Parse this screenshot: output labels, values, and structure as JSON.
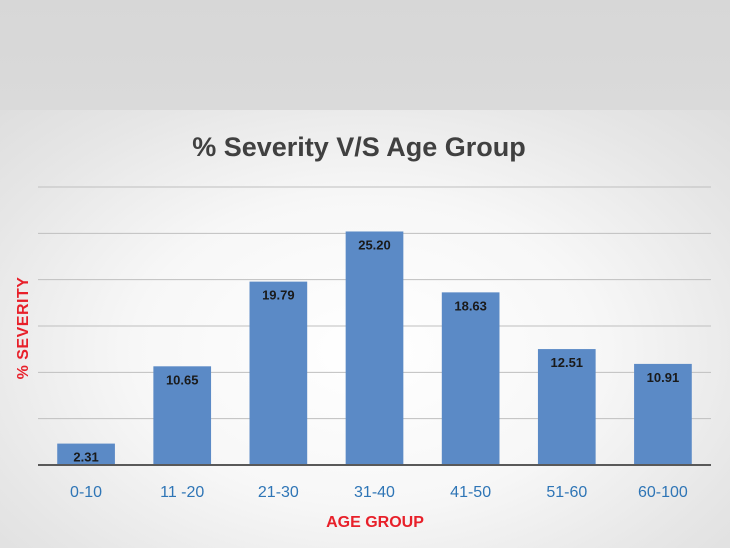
{
  "chart_data": {
    "type": "bar",
    "title": "% Severity V/S Age Group",
    "xlabel": "AGE GROUP",
    "ylabel": "% SEVERITY",
    "categories": [
      "0-10",
      "11 -20",
      "21-30",
      "31-40",
      "41-50",
      "51-60",
      "60-100"
    ],
    "values": [
      2.31,
      10.65,
      19.79,
      25.2,
      18.63,
      12.51,
      10.91
    ],
    "data_labels": [
      "2.31",
      "10.65",
      "19.79",
      "25.20",
      "18.63",
      "12.51",
      "10.91"
    ],
    "ylim": [
      0,
      30
    ],
    "grid": true,
    "legend": "none",
    "colors": {
      "bar": "#5b8ac6",
      "title": "#404040",
      "axis_label": "#e8202a",
      "category_label": "#2e75b6",
      "data_label": "#1a1a1a"
    }
  }
}
